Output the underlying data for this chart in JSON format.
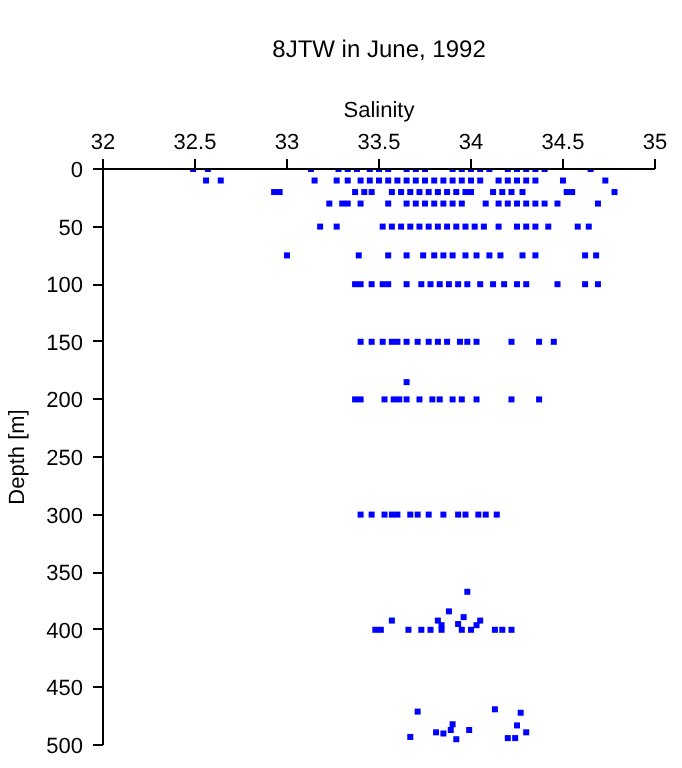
{
  "chart_data": {
    "type": "scatter",
    "title": "8JTW in June, 1992",
    "xlabel": "Salinity",
    "ylabel": "Depth [m]",
    "xlim": [
      32,
      35
    ],
    "xticks": [
      32,
      32.5,
      33,
      33.5,
      34,
      34.5,
      35
    ],
    "ylim": [
      500,
      0
    ],
    "yticks": [
      0,
      50,
      100,
      150,
      200,
      250,
      300,
      350,
      400,
      450,
      500
    ],
    "grid": false,
    "marker": "square",
    "series": [
      {
        "color": "#0000ff",
        "x": [
          32.49,
          32.57,
          33.13,
          33.28,
          33.33,
          33.38,
          33.45,
          33.5,
          33.55,
          33.65,
          33.7,
          33.75,
          33.9,
          33.95,
          34.0,
          34.05,
          34.1,
          34.2,
          34.25,
          34.3,
          34.35,
          34.4,
          34.65
        ],
        "values": [
          0,
          0,
          0,
          0,
          0,
          0,
          0,
          0,
          0,
          0,
          0,
          0,
          0,
          0,
          0,
          0,
          0,
          0,
          0,
          0,
          0,
          0,
          0
        ]
      },
      {
        "color": "#0000ff",
        "x": [
          32.56,
          32.64,
          33.15,
          33.27,
          33.33,
          33.4,
          33.45,
          33.5,
          33.55,
          33.6,
          33.65,
          33.7,
          33.75,
          33.8,
          33.85,
          33.9,
          33.95,
          34.0,
          34.05,
          34.15,
          34.2,
          34.25,
          34.3,
          34.35,
          34.5,
          34.73
        ],
        "values": [
          10,
          10,
          10,
          10,
          10,
          10,
          10,
          10,
          10,
          10,
          10,
          10,
          10,
          10,
          10,
          10,
          10,
          10,
          10,
          10,
          10,
          10,
          10,
          10,
          10,
          10
        ]
      },
      {
        "color": "#0000ff",
        "x": [
          32.93,
          32.96,
          33.37,
          33.42,
          33.46,
          33.57,
          33.62,
          33.67,
          33.72,
          33.77,
          33.82,
          33.87,
          33.92,
          33.97,
          34.0,
          34.12,
          34.17,
          34.22,
          34.28,
          34.52,
          34.55,
          34.78
        ],
        "values": [
          20,
          20,
          20,
          20,
          20,
          20,
          20,
          20,
          20,
          20,
          20,
          20,
          20,
          20,
          20,
          20,
          20,
          20,
          20,
          20,
          20,
          20
        ]
      },
      {
        "color": "#0000ff",
        "x": [
          33.23,
          33.3,
          33.33,
          33.4,
          33.55,
          33.65,
          33.7,
          33.75,
          33.8,
          33.85,
          33.9,
          33.95,
          34.08,
          34.15,
          34.2,
          34.25,
          34.3,
          34.35,
          34.4,
          34.47,
          34.69
        ],
        "values": [
          30,
          30,
          30,
          30,
          30,
          30,
          30,
          30,
          30,
          30,
          30,
          30,
          30,
          30,
          30,
          30,
          30,
          30,
          30,
          30,
          30
        ]
      },
      {
        "color": "#0000ff",
        "x": [
          33.18,
          33.27,
          33.52,
          33.57,
          33.62,
          33.67,
          33.72,
          33.77,
          33.82,
          33.87,
          33.92,
          33.97,
          34.02,
          34.07,
          34.15,
          34.25,
          34.3,
          34.35,
          34.42,
          34.58,
          34.64
        ],
        "values": [
          50,
          50,
          50,
          50,
          50,
          50,
          50,
          50,
          50,
          50,
          50,
          50,
          50,
          50,
          50,
          50,
          50,
          50,
          50,
          50,
          50
        ]
      },
      {
        "color": "#0000ff",
        "x": [
          33.0,
          33.39,
          33.55,
          33.65,
          33.74,
          33.8,
          33.85,
          33.9,
          33.97,
          34.03,
          34.1,
          34.16,
          34.28,
          34.35,
          34.62,
          34.68
        ],
        "values": [
          75,
          75,
          75,
          75,
          75,
          75,
          75,
          75,
          75,
          75,
          75,
          75,
          75,
          75,
          75,
          75
        ]
      },
      {
        "color": "#0000ff",
        "x": [
          33.37,
          33.4,
          33.46,
          33.52,
          33.55,
          33.65,
          33.73,
          33.78,
          33.83,
          33.88,
          33.93,
          33.98,
          34.05,
          34.12,
          34.18,
          34.25,
          34.3,
          34.47,
          34.62,
          34.69
        ],
        "values": [
          100,
          100,
          100,
          100,
          100,
          100,
          100,
          100,
          100,
          100,
          100,
          100,
          100,
          100,
          100,
          100,
          100,
          100,
          100,
          100
        ]
      },
      {
        "color": "#0000ff",
        "x": [
          33.4,
          33.46,
          33.52,
          33.57,
          33.6,
          33.65,
          33.71,
          33.77,
          33.82,
          33.87,
          33.94,
          33.98,
          34.03,
          34.22,
          34.37,
          34.45
        ],
        "values": [
          150,
          150,
          150,
          150,
          150,
          150,
          150,
          150,
          150,
          150,
          150,
          150,
          150,
          150,
          150,
          150
        ]
      },
      {
        "color": "#0000ff",
        "x": [
          33.65,
          33.37,
          33.4,
          33.53,
          33.58,
          33.61,
          33.65,
          33.72,
          33.79,
          33.83,
          33.9,
          33.95,
          34.03,
          34.22,
          34.37
        ],
        "values": [
          185,
          200,
          200,
          200,
          200,
          200,
          200,
          200,
          200,
          200,
          200,
          200,
          200,
          200,
          200
        ]
      },
      {
        "color": "#0000ff",
        "x": [
          33.4,
          33.46,
          33.53,
          33.57,
          33.6,
          33.67,
          33.71,
          33.77,
          33.85,
          33.93,
          33.97,
          34.04,
          34.08,
          34.14
        ],
        "values": [
          300,
          300,
          300,
          300,
          300,
          300,
          300,
          300,
          300,
          300,
          300,
          300,
          300,
          300
        ]
      },
      {
        "color": "#0000ff",
        "x": [
          33.48,
          33.51,
          33.66,
          33.73,
          33.78,
          33.84,
          33.95,
          34.0,
          34.13,
          34.17,
          34.22,
          33.98,
          33.88,
          33.57,
          33.82,
          33.96,
          33.93,
          34.05,
          33.84,
          34.03
        ],
        "values": [
          400,
          400,
          400,
          400,
          400,
          400,
          400,
          400,
          400,
          400,
          400,
          367,
          384,
          392,
          392,
          389,
          395,
          392,
          396,
          396
        ]
      },
      {
        "color": "#0000ff",
        "x": [
          33.71,
          34.13,
          34.27,
          34.25,
          33.9,
          33.81,
          33.89,
          33.85,
          33.99,
          33.67,
          33.92,
          34.2,
          34.24,
          34.3
        ],
        "values": [
          471,
          469,
          472,
          483,
          482,
          489,
          487,
          490,
          487,
          493,
          495,
          494,
          494,
          489
        ]
      }
    ]
  }
}
